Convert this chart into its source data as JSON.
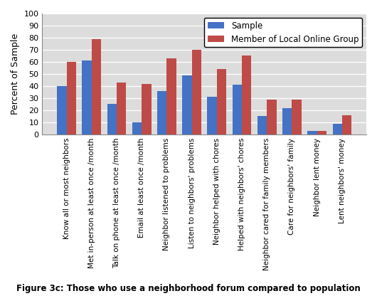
{
  "categories": [
    "Know all or most neighbors",
    "Met in-person at least once /month",
    "Talk on phone at least once /month",
    "Email at least once /month",
    "Neighbor listened to problems",
    "Listen to neighbors' problems",
    "Neighbor helped with chores",
    "Helped with neighbors' chores",
    "Neighbor cared for family members",
    "Care for neighbors' family",
    "Neighbor lent money",
    "Lent neighbors' money"
  ],
  "sample": [
    40,
    61,
    25,
    10,
    36,
    49,
    31,
    41,
    15,
    22,
    3,
    9
  ],
  "member": [
    60,
    79,
    43,
    42,
    63,
    70,
    54,
    65,
    29,
    29,
    3,
    16
  ],
  "sample_color": "#4472C4",
  "member_color": "#BE4B48",
  "plot_bg_color": "#DCDCDC",
  "fig_bg_color": "#FFFFFF",
  "ylabel": "Percent of Sample",
  "ylim": [
    0,
    100
  ],
  "yticks": [
    0,
    10,
    20,
    30,
    40,
    50,
    60,
    70,
    80,
    90,
    100
  ],
  "legend_labels": [
    "Sample",
    "Member of Local Online Group"
  ],
  "caption": "Figure 3c: Those who use a neighborhood forum compared to population",
  "bar_width": 0.38,
  "figsize": [
    5.3,
    4.16
  ],
  "dpi": 100
}
